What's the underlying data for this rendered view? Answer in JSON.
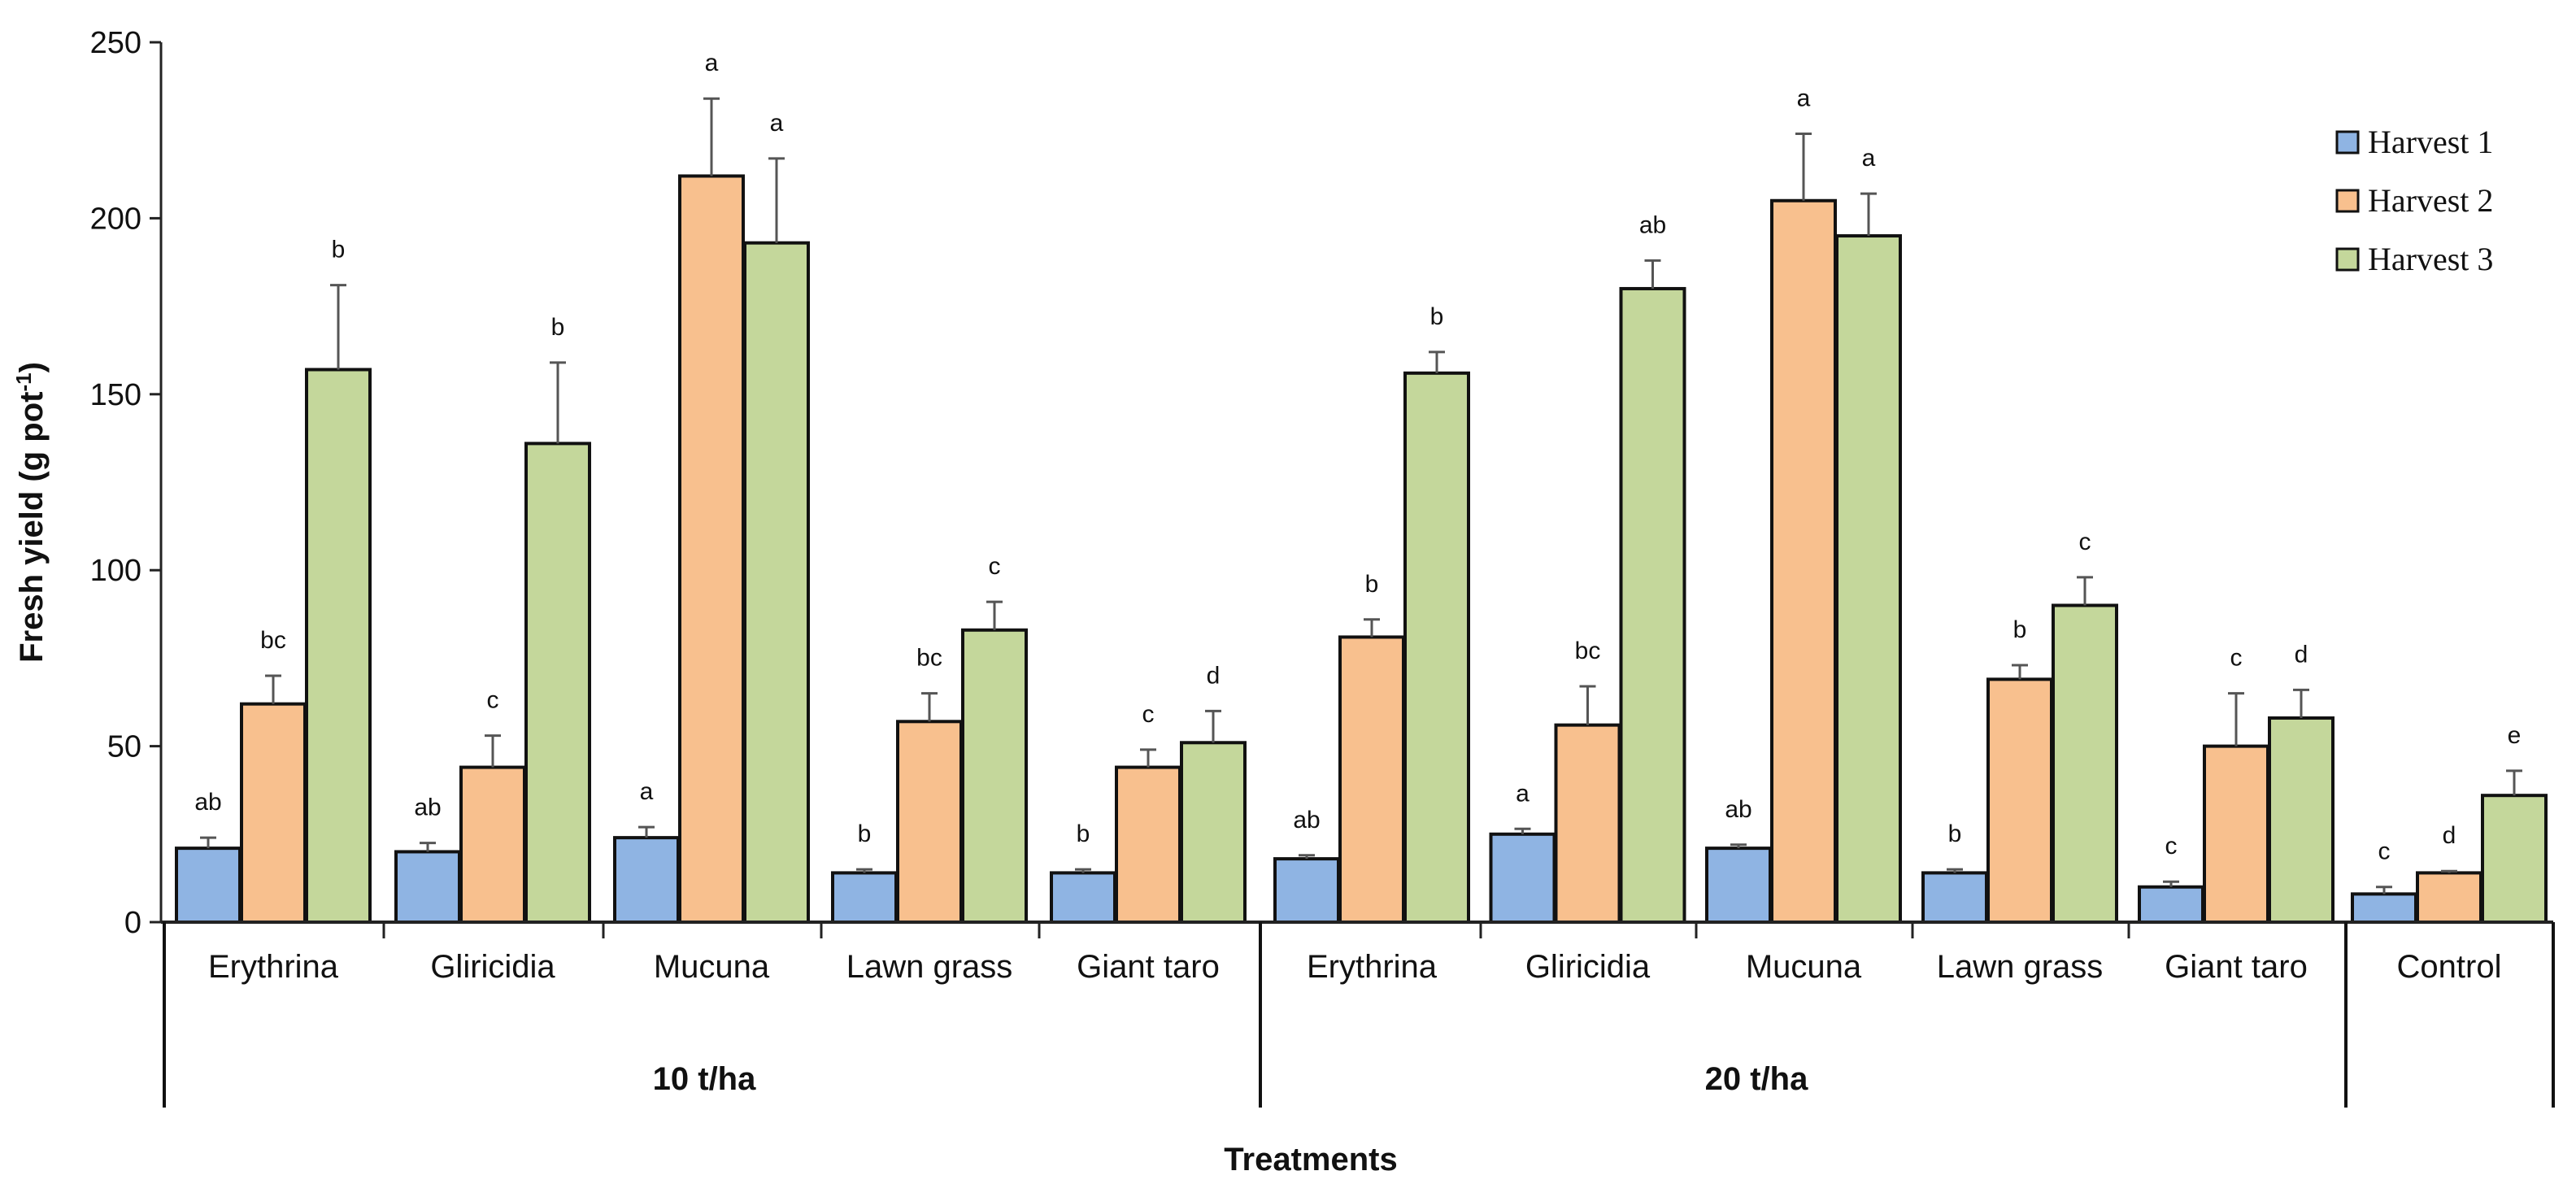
{
  "chart_data": {
    "type": "bar",
    "title": "",
    "ylabel": "Fresh yield (g pot",
    "ylabel_sup": "-1",
    "ylabel_end": ")",
    "xlabel": "Treatments",
    "ylim": [
      0,
      250
    ],
    "yticks": [
      0,
      50,
      100,
      150,
      200,
      250
    ],
    "legend_position": "top-right",
    "colors": {
      "Harvest 1": "#8fb4e3",
      "Harvest 2": "#f8c08e",
      "Harvest 3": "#c4d79b"
    },
    "groups": [
      {
        "label": "10 t/ha",
        "categories": [
          "Erythrina",
          "Gliricidia",
          "Mucuna",
          "Lawn grass",
          "Giant taro"
        ]
      },
      {
        "label": "20 t/ha",
        "categories": [
          "Erythrina",
          "Gliricidia",
          "Mucuna",
          "Lawn grass",
          "Giant taro"
        ]
      },
      {
        "label": "",
        "categories": [
          "Control"
        ]
      }
    ],
    "categories": [
      "Erythrina",
      "Gliricidia",
      "Mucuna",
      "Lawn grass",
      "Giant taro",
      "Erythrina",
      "Gliricidia",
      "Mucuna",
      "Lawn grass",
      "Giant taro",
      "Control"
    ],
    "series": [
      {
        "name": "Harvest 1",
        "values": [
          21,
          20,
          24,
          14,
          14,
          18,
          25,
          21,
          14,
          10,
          8
        ],
        "errors": [
          3,
          2.5,
          3,
          1,
          1,
          1,
          1.5,
          1,
          1,
          1.5,
          2
        ],
        "letters": [
          "ab",
          "ab",
          "a",
          "b",
          "b",
          "ab",
          "a",
          "ab",
          "b",
          "c",
          "c"
        ]
      },
      {
        "name": "Harvest 2",
        "values": [
          62,
          44,
          212,
          57,
          44,
          81,
          56,
          205,
          69,
          50,
          14
        ],
        "errors": [
          8,
          9,
          22,
          8,
          5,
          5,
          11,
          19,
          4,
          15,
          0.5
        ],
        "letters": [
          "bc",
          "c",
          "a",
          "bc",
          "c",
          "b",
          "bc",
          "a",
          "b",
          "c",
          "d"
        ]
      },
      {
        "name": "Harvest 3",
        "values": [
          157,
          136,
          193,
          83,
          51,
          156,
          180,
          195,
          90,
          58,
          36
        ],
        "errors": [
          24,
          23,
          24,
          8,
          9,
          6,
          8,
          12,
          8,
          8,
          7
        ],
        "letters": [
          "b",
          "b",
          "a",
          "c",
          "d",
          "b",
          "ab",
          "a",
          "c",
          "d",
          "e"
        ]
      }
    ]
  }
}
